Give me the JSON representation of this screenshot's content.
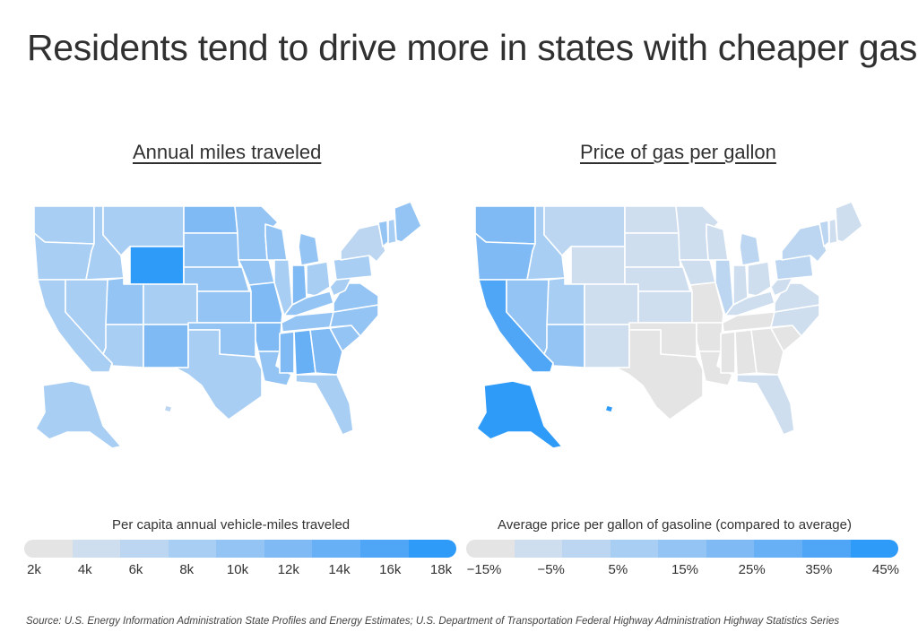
{
  "title": "Residents tend to drive more in states with cheaper gas",
  "left_panel": {
    "title": "Annual miles traveled",
    "legend_label": "Per capita annual vehicle-miles traveled",
    "ticks": [
      "2k",
      "4k",
      "6k",
      "8k",
      "10k",
      "12k",
      "14k",
      "16k",
      "18k"
    ],
    "scale": [
      "#e4e4e4",
      "#cedeef",
      "#bcd6f2",
      "#a8cef4",
      "#94c4f4",
      "#7fbaf4",
      "#68b0f6",
      "#4fa6f7",
      "#2f9bf8"
    ],
    "states": {
      "WA": 3,
      "OR": 3,
      "CA": 3,
      "ID": 3,
      "NV": 3,
      "MT": 3,
      "WY": 8,
      "UT": 4,
      "AZ": 3,
      "CO": 3,
      "NM": 5,
      "ND": 5,
      "SD": 4,
      "NE": 4,
      "KS": 4,
      "OK": 4,
      "TX": 3,
      "MN": 4,
      "IA": 4,
      "MO": 5,
      "AR": 5,
      "LA": 4,
      "WI": 4,
      "IL": 3,
      "IN": 5,
      "MI": 4,
      "OH": 3,
      "KY": 4,
      "TN": 4,
      "MS": 5,
      "AL": 6,
      "GA": 5,
      "FL": 3,
      "SC": 4,
      "NC": 4,
      "VA": 4,
      "WV": 3,
      "PA": 3,
      "NY": 2,
      "VT": 4,
      "NH": 3,
      "ME": 4,
      "AK": 3,
      "HI": 2
    }
  },
  "right_panel": {
    "title": "Price of gas per gallon",
    "legend_label": "Average price per gallon of gasoline (compared to average)",
    "ticks": [
      "−15%",
      "−5%",
      "5%",
      "15%",
      "25%",
      "35%",
      "45%"
    ],
    "scale": [
      "#e4e4e4",
      "#cedeef",
      "#bcd6f2",
      "#a8cef4",
      "#94c4f4",
      "#7fbaf4",
      "#68b0f6",
      "#4fa6f7",
      "#2f9bf8"
    ],
    "states": {
      "WA": 5,
      "OR": 5,
      "CA": 7,
      "ID": 3,
      "NV": 4,
      "MT": 2,
      "WY": 1,
      "UT": 3,
      "AZ": 4,
      "CO": 1,
      "NM": 1,
      "ND": 1,
      "SD": 1,
      "NE": 1,
      "KS": 1,
      "OK": 0,
      "TX": 0,
      "MN": 1,
      "IA": 1,
      "MO": 0,
      "AR": 0,
      "LA": 0,
      "WI": 1,
      "IL": 2,
      "IN": 1,
      "MI": 2,
      "OH": 1,
      "KY": 1,
      "TN": 0,
      "MS": 0,
      "AL": 0,
      "GA": 0,
      "FL": 1,
      "SC": 0,
      "NC": 1,
      "VA": 1,
      "WV": 1,
      "PA": 2,
      "NY": 2,
      "VT": 2,
      "NH": 1,
      "ME": 1,
      "AK": 8,
      "HI": 8
    }
  },
  "source": "Source:  U.S. Energy Information Administration State Profiles and Energy Estimates; U.S. Department of Transportation Federal Highway Administration Highway Statistics Series"
}
